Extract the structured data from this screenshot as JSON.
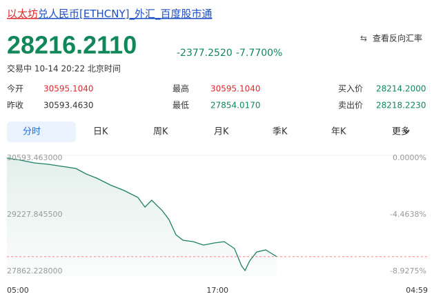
{
  "header": {
    "title_link": "以太坊",
    "title_rest": "兑人民币[ETHCNY]_外汇_百度股市通"
  },
  "quote": {
    "price": "28216.2110",
    "change": "-2377.2520",
    "change_pct": "-7.7700%",
    "status": "交易中 10-14 20:22 北京时间",
    "reverse": "查看反向汇率"
  },
  "stats": [
    {
      "label": "今开",
      "value": "30595.1040"
    },
    {
      "label": "昨收",
      "value": "30593.4630"
    },
    {
      "label": "最高",
      "value": "30595.1040"
    },
    {
      "label": "最低",
      "value": "27854.0170"
    },
    {
      "label": "买入价",
      "value": "28214.2000"
    },
    {
      "label": "卖出价",
      "value": "28218.2230"
    }
  ],
  "tabs": [
    "分时",
    "日K",
    "周K",
    "月K",
    "季K",
    "年K",
    "更多"
  ],
  "chart_data": {
    "type": "line",
    "color": "#1a7f64",
    "x": [
      0,
      47,
      94,
      142,
      189,
      236,
      271,
      307,
      354,
      401,
      448,
      472,
      495,
      531,
      554,
      578,
      602,
      637,
      672,
      708,
      743,
      778,
      802,
      814,
      830,
      854,
      885,
      908,
      922
    ],
    "values": [
      30593,
      30543,
      30477,
      30444,
      30394,
      30344,
      30210,
      30110,
      29944,
      29811,
      29644,
      29411,
      29578,
      29328,
      29111,
      28745,
      28612,
      28578,
      28495,
      28545,
      28578,
      28412,
      27995,
      27880,
      28112,
      28328,
      28378,
      28278,
      28216.211
    ],
    "xlim": [
      0,
      1439
    ],
    "xticks": [
      {
        "value": 0,
        "label": "05:00"
      },
      {
        "value": 720,
        "label": "17:00"
      },
      {
        "value": 1439,
        "label": "04:59"
      }
    ],
    "ylim": [
      27862.228,
      30593.463
    ],
    "yticks": [
      {
        "value": 30593.463,
        "label": "30593.463000"
      },
      {
        "value": 29227.8455,
        "label": "29227.845500"
      },
      {
        "value": 27862.228,
        "label": "27862.228000"
      }
    ],
    "y2lim": [
      -8.9275,
      0
    ],
    "y2ticks": [
      {
        "value": 0,
        "label": "0.0000%"
      },
      {
        "value": -4.4638,
        "label": "-4.4638%"
      },
      {
        "value": -8.9275,
        "label": "-8.9275%"
      }
    ]
  }
}
